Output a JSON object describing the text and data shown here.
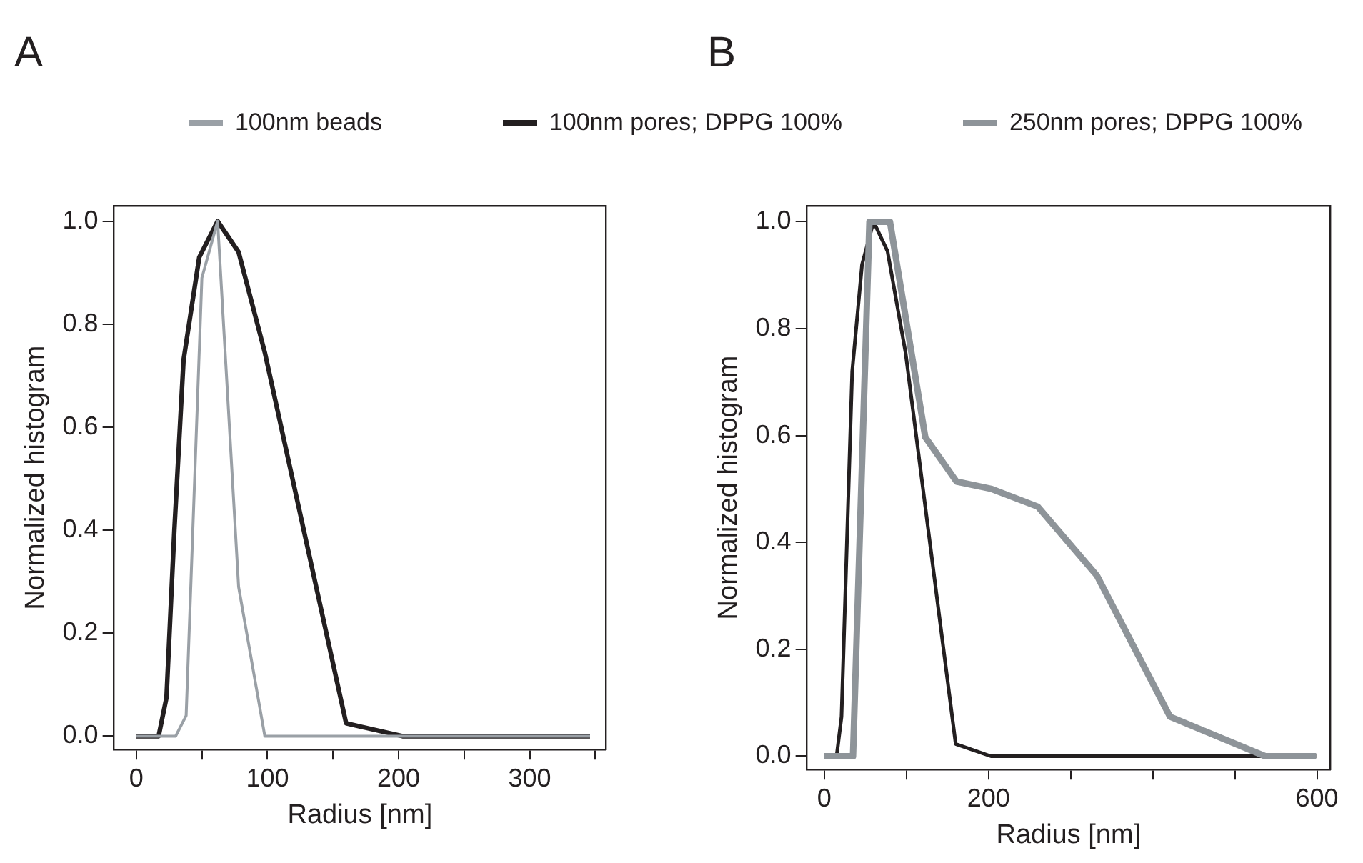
{
  "chart_data": [
    {
      "type": "line",
      "title": "A",
      "xlabel": "Radius [nm]",
      "ylabel": "Normalized histogram",
      "legend": "top",
      "marker": "none",
      "grid": false,
      "xlim": [
        -17,
        358
      ],
      "xticks": [
        0,
        {
          "value": 50,
          "label": null
        },
        100,
        {
          "value": 150,
          "label": null
        },
        200,
        {
          "value": 250,
          "label": null
        },
        300,
        {
          "value": 350,
          "label": null
        }
      ],
      "ylim": [
        -0.026,
        1.03
      ],
      "yticks": [
        {
          "value": 0,
          "label": "0.0"
        },
        {
          "value": 0.2,
          "label": "0.2"
        },
        {
          "value": 0.4,
          "label": "0.4"
        },
        {
          "value": 0.6,
          "label": "0.6"
        },
        {
          "value": 0.8,
          "label": "0.8"
        },
        {
          "value": 1,
          "label": "1.0"
        }
      ],
      "series": [
        {
          "name": "100nm beads",
          "color": "#9aa0a6",
          "x": [
            0,
            30,
            38,
            50,
            62,
            78,
            98,
            346
          ],
          "values": [
            0,
            0,
            0.04,
            0.89,
            1.0,
            0.29,
            0,
            0
          ]
        },
        {
          "name": "100nm pores; DPPG 100%",
          "color": "#231f20",
          "x": [
            0,
            17,
            23,
            29,
            36,
            48,
            62,
            78,
            98,
            160,
            203,
            346
          ],
          "values": [
            0,
            0,
            0.075,
            0.4,
            0.73,
            0.93,
            1.0,
            0.94,
            0.745,
            0.025,
            0,
            0
          ]
        }
      ]
    },
    {
      "type": "line",
      "title": "B",
      "xlabel": "Radius [nm]",
      "ylabel": "Normalized histogram",
      "legend": "top",
      "marker": "none",
      "grid": false,
      "xlim": [
        -21,
        616
      ],
      "xticks": [
        0,
        {
          "value": 100,
          "label": null
        },
        200,
        {
          "value": 300,
          "label": null
        },
        {
          "value": 400,
          "label": null
        },
        {
          "value": 500,
          "label": null
        },
        600
      ],
      "ylim": [
        -0.025,
        1.03
      ],
      "yticks": [
        {
          "value": 0,
          "label": "0.0"
        },
        {
          "value": 0.2,
          "label": "0.2"
        },
        {
          "value": 0.4,
          "label": "0.4"
        },
        {
          "value": 0.6,
          "label": "0.6"
        },
        {
          "value": 0.8,
          "label": "0.8"
        },
        {
          "value": 1,
          "label": "1.0"
        }
      ],
      "series": [
        {
          "name": "250nm pores; DPPG 100%",
          "color": "#8e9499",
          "x": [
            0,
            35,
            55,
            80,
            123,
            161,
            204,
            260,
            332,
            421,
            537,
            599
          ],
          "values": [
            0,
            0,
            1.0,
            1.0,
            0.597,
            0.514,
            0.5,
            0.467,
            0.338,
            0.074,
            0,
            0
          ]
        },
        {
          "name": "100nm pores; DPPG 100%",
          "color": "#231f20",
          "x": [
            0,
            15,
            21,
            34,
            46,
            60,
            77,
            99,
            160,
            203,
            599
          ],
          "values": [
            0,
            0,
            0.074,
            0.72,
            0.92,
            1.0,
            0.945,
            0.755,
            0.023,
            0,
            0
          ]
        }
      ]
    }
  ]
}
